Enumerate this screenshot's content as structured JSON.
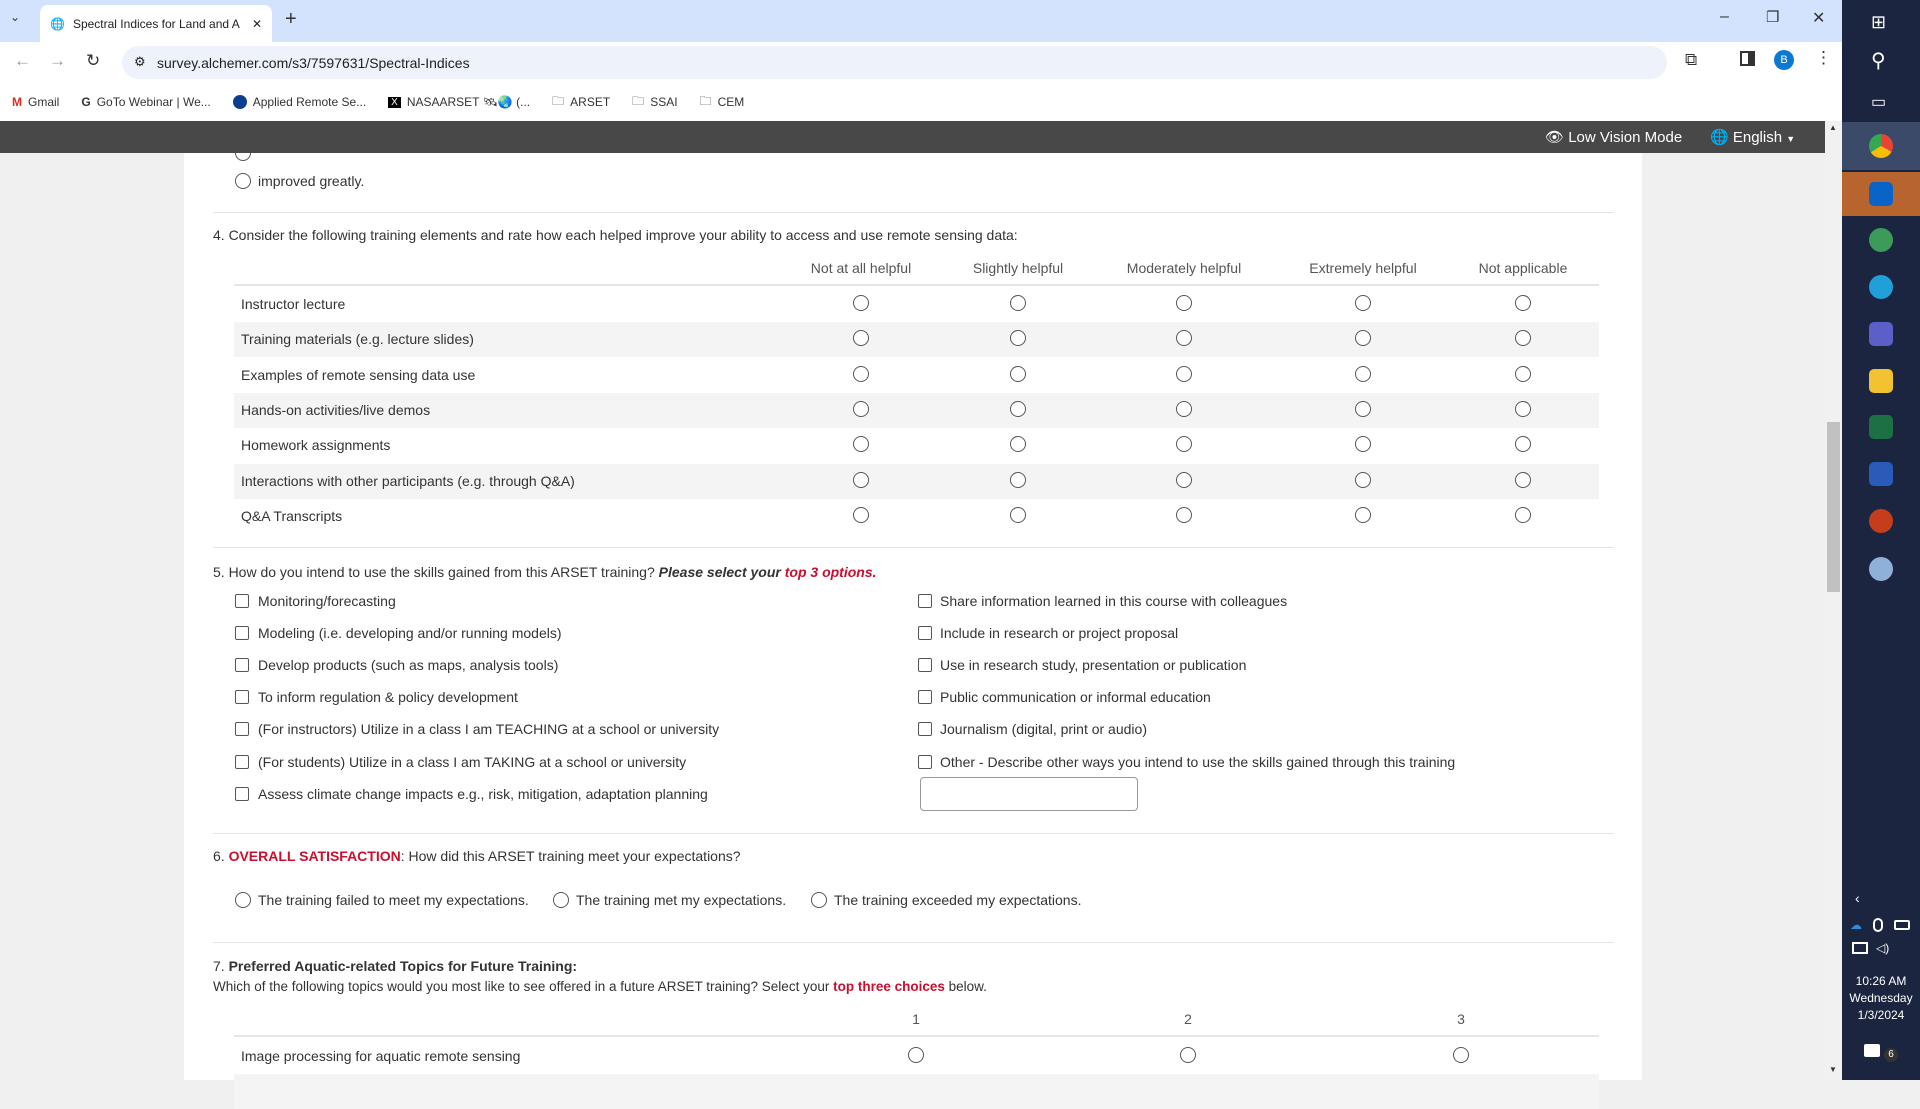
{
  "browser": {
    "tab_title": "Spectral Indices for Land and A",
    "url": "survey.alchemer.com/s3/7597631/Spectral-Indices",
    "profile_initial": "B",
    "bookmarks": [
      {
        "label": "Gmail"
      },
      {
        "label": "GoTo Webinar | We..."
      },
      {
        "label": "Applied Remote Se..."
      },
      {
        "label": "NASAARSET 🛰🌏 (..."
      },
      {
        "label": "ARSET"
      },
      {
        "label": "SSAI"
      },
      {
        "label": "CEM"
      }
    ]
  },
  "survey_header": {
    "low_vision": "Low Vision Mode",
    "language": "English"
  },
  "q3": {
    "option_last": "improved greatly."
  },
  "q4": {
    "title": "4. Consider the following training elements and rate how each helped improve your ability to access and use remote sensing data:",
    "columns": [
      "Not at all helpful",
      "Slightly helpful",
      "Moderately helpful",
      "Extremely helpful",
      "Not applicable"
    ],
    "rows": [
      "Instructor lecture",
      "Training materials (e.g. lecture slides)",
      "Examples of remote sensing data use",
      "Hands-on activities/live demos",
      "Homework assignments",
      "Interactions with other participants (e.g. through Q&A)",
      "Q&A Transcripts"
    ]
  },
  "q5": {
    "title": "5. How do you intend to use the skills gained from this ARSET training?",
    "instruction": "Please select your",
    "emphasis": "top 3 options.",
    "left": [
      "Monitoring/forecasting",
      "Modeling (i.e. developing and/or running models)",
      "Develop products (such as maps, analysis tools)",
      "To inform regulation & policy development",
      "(For instructors) Utilize in a class I am TEACHING at a school or university",
      "(For students) Utilize in a class I am TAKING at a school or university",
      "Assess climate change impacts e.g., risk, mitigation, adaptation planning"
    ],
    "right": [
      "Share information learned in this course with colleagues",
      "Include in research or project proposal",
      "Use in research study, presentation or publication",
      "Public communication or informal education",
      "Journalism (digital, print or audio)",
      "Other - Describe other ways you intend to use the skills gained through this training"
    ],
    "other_value": ""
  },
  "q6": {
    "number": "6.",
    "label": "OVERALL SATISFACTION",
    "question": ": How did this ARSET training meet your expectations?",
    "options": [
      "The training failed to meet my expectations.",
      "The training met my expectations.",
      "The training exceeded my expectations."
    ]
  },
  "q7": {
    "number": "7.",
    "title": "Preferred Aquatic-related Topics for Future Training:",
    "sub_before": "Which of the following topics would you most like to see offered in a future ARSET training? Select your",
    "sub_emphasis": "top three choices",
    "sub_after": "below.",
    "columns": [
      "1",
      "2",
      "3"
    ],
    "rows": [
      "Image processing for aquatic remote sensing"
    ]
  },
  "taskbar": {
    "time": "10:26 AM",
    "day": "Wednesday",
    "date": "1/3/2024",
    "notifications": "6"
  },
  "colors": {
    "accent_red": "#c8102e",
    "header_bg": "#484848",
    "taskbar_bg": "#1b2540",
    "tabstrip": "#d3e3fd"
  }
}
